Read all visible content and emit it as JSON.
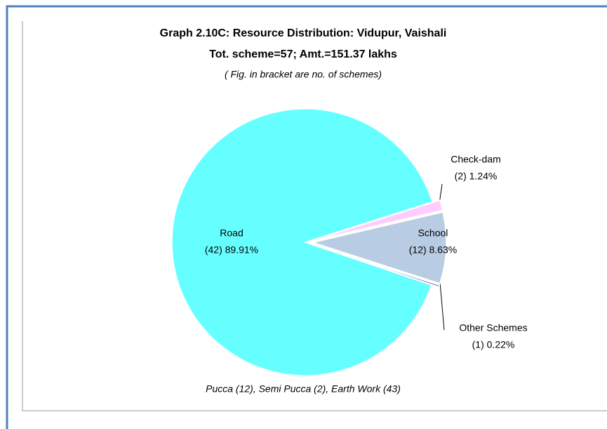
{
  "chart_data": {
    "type": "pie",
    "title": "Graph 2.10C: Resource Distribution: Vidupur, Vaishali",
    "subtitle": "Tot. scheme=57; Amt.=151.37 lakhs",
    "note": "( Fig. in bracket are no. of schemes)",
    "footer": "Pucca (12), Semi Pucca (2), Earth Work (43)",
    "categories": [
      "Road",
      "Check-dam",
      "School",
      "Other Schemes"
    ],
    "values": [
      89.91,
      1.24,
      8.63,
      0.22
    ],
    "value_labels": [
      "(42) 89.91%",
      "(2) 1.24%",
      "(12) 8.63%",
      "(1) 0.22%"
    ],
    "colors": [
      "#66ffff",
      "#ffccff",
      "#b8cce4",
      "#7f5f9f"
    ]
  }
}
